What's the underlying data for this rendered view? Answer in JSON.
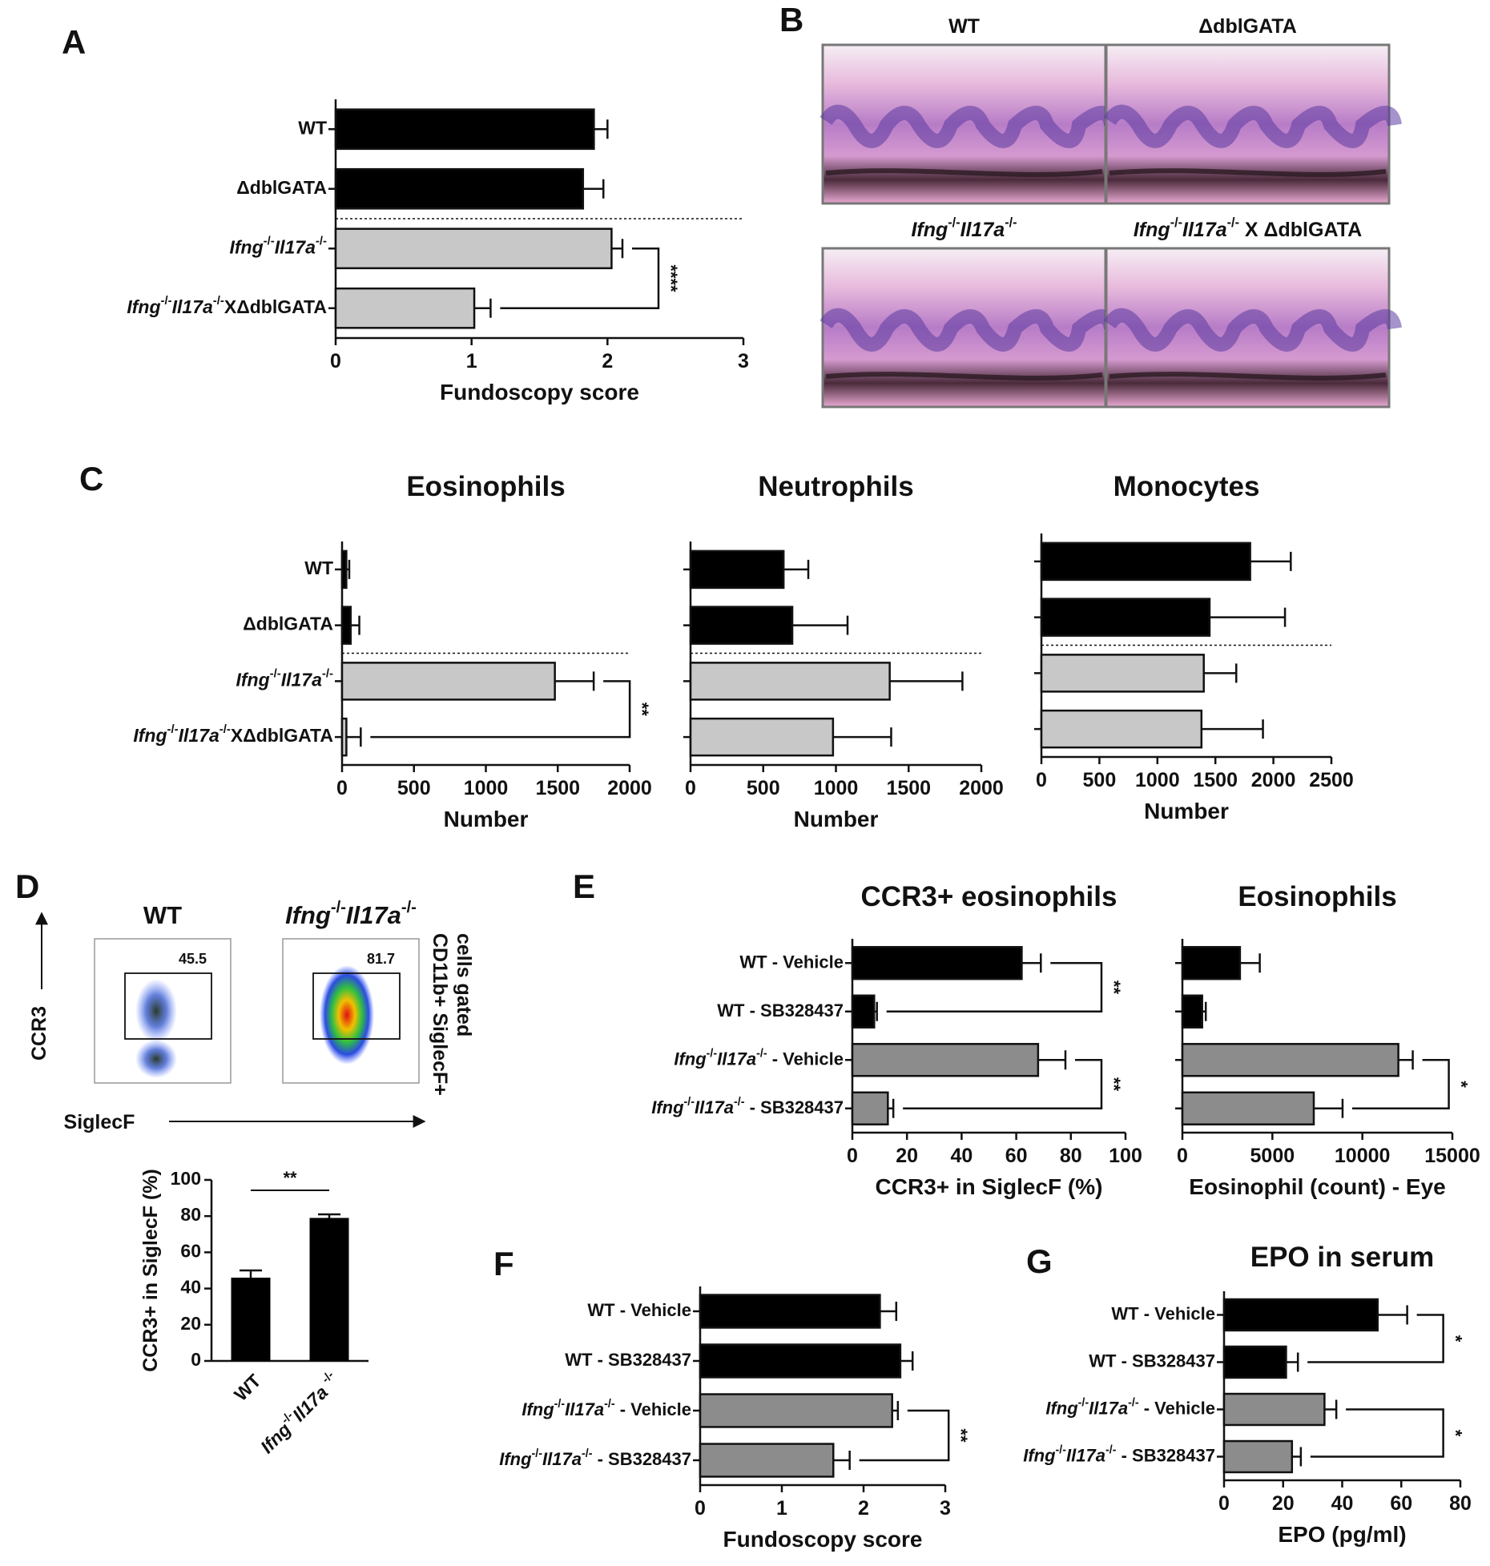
{
  "chart_data": [
    {
      "type": "hbar",
      "panel": "A",
      "categories": [
        "WT",
        "ΔdblGATA",
        "Ifng-/-Il17a-/-",
        "Ifng-/-Il17a-/-XΔdblGATA"
      ],
      "values": [
        1.9,
        1.82,
        2.03,
        1.02
      ],
      "errors": [
        0.1,
        0.15,
        0.08,
        0.12
      ],
      "colors": [
        "#000000",
        "#000000",
        "#c8c8c8",
        "#c8c8c8"
      ],
      "xlim": [
        0,
        3
      ],
      "xticks": [
        0,
        1,
        2,
        3
      ],
      "xlabel": "Fundoscopy score",
      "separator": true,
      "significance": [
        {
          "rows": [
            2,
            3
          ],
          "label": "****"
        }
      ]
    },
    {
      "type": "images",
      "panel": "B",
      "titles": [
        "WT",
        "ΔdblGATA",
        "Ifng-/-Il17a-/-",
        "Ifng-/-Il17a-/- X ΔdblGATA"
      ]
    },
    {
      "type": "hbar",
      "panel": "C",
      "title": "Eosinophils",
      "categories": [
        "WT",
        "ΔdblGATA",
        "Ifng-/-Il17a-/-",
        "Ifng-/-Il17a-/-XΔdblGATA"
      ],
      "values": [
        30,
        60,
        1480,
        30
      ],
      "errors": [
        20,
        60,
        270,
        100
      ],
      "colors": [
        "#000000",
        "#000000",
        "#c8c8c8",
        "#c8c8c8"
      ],
      "xlim": [
        0,
        2000
      ],
      "xticks": [
        0,
        500,
        1000,
        1500,
        2000
      ],
      "xlabel": "Number",
      "separator": true,
      "significance": [
        {
          "rows": [
            2,
            3
          ],
          "label": "**"
        }
      ]
    },
    {
      "type": "hbar",
      "title": "Neutrophils",
      "categories": [
        null,
        null,
        null,
        null
      ],
      "values": [
        640,
        700,
        1370,
        980
      ],
      "errors": [
        170,
        380,
        500,
        400
      ],
      "colors": [
        "#000000",
        "#000000",
        "#c8c8c8",
        "#c8c8c8"
      ],
      "xlim": [
        0,
        2000
      ],
      "xticks": [
        0,
        500,
        1000,
        1500,
        2000
      ],
      "xlabel": "Number",
      "separator": true
    },
    {
      "type": "hbar",
      "title": "Monocytes",
      "categories": [
        null,
        null,
        null,
        null
      ],
      "values": [
        1800,
        1450,
        1400,
        1380
      ],
      "errors": [
        350,
        650,
        280,
        530
      ],
      "colors": [
        "#000000",
        "#000000",
        "#c8c8c8",
        "#c8c8c8"
      ],
      "xlim": [
        0,
        2500
      ],
      "xticks": [
        0,
        500,
        1000,
        1500,
        2000,
        2500
      ],
      "xlabel": "Number",
      "separator": true
    },
    {
      "type": "flow",
      "panel": "D",
      "titles": [
        "WT",
        "Ifng-/-Il17a-/-"
      ],
      "gate_values": [
        45.5,
        81.7
      ],
      "xlabel": "SiglecF",
      "ylabel": "CCR3",
      "note": [
        "CD11b+ SiglecF+",
        "cells gated"
      ]
    },
    {
      "type": "vbar",
      "categories": [
        "WT",
        "Ifng-/-Il17a -/-"
      ],
      "values": [
        46,
        79
      ],
      "errors": [
        4,
        2
      ],
      "color": "#000000",
      "ylim": [
        0,
        100
      ],
      "yticks": [
        0,
        20,
        40,
        60,
        80,
        100
      ],
      "ylabel": "CCR3+ in SiglecF (%)",
      "significance": [
        {
          "rows": [
            0,
            1
          ],
          "label": "**"
        }
      ]
    },
    {
      "type": "hbar",
      "panel": "E",
      "title": "CCR3+ eosinophils",
      "categories": [
        "WT - Vehicle",
        "WT - SB328437",
        "Ifng-/-Il17a-/- - Vehicle",
        "Ifng-/-Il17a-/- - SB328437"
      ],
      "values": [
        62,
        8,
        68,
        13
      ],
      "errors": [
        7,
        1,
        10,
        2
      ],
      "colors": [
        "#000000",
        "#000000",
        "#8c8c8c",
        "#8c8c8c"
      ],
      "xlim": [
        0,
        100
      ],
      "xticks": [
        0,
        20,
        40,
        60,
        80,
        100
      ],
      "xlabel": "CCR3+ in SiglecF (%)",
      "significance": [
        {
          "rows": [
            0,
            1
          ],
          "label": "**"
        },
        {
          "rows": [
            2,
            3
          ],
          "label": "**"
        }
      ]
    },
    {
      "type": "hbar",
      "title": "Eosinophils",
      "categories": [
        null,
        null,
        null,
        null
      ],
      "values": [
        3200,
        1100,
        12000,
        7300
      ],
      "errors": [
        1100,
        200,
        800,
        1600
      ],
      "colors": [
        "#000000",
        "#000000",
        "#8c8c8c",
        "#8c8c8c"
      ],
      "xlim": [
        0,
        15000
      ],
      "xticks": [
        0,
        5000,
        10000,
        15000
      ],
      "xlabel": "Eosinophil (count) - Eye",
      "significance": [
        {
          "rows": [
            2,
            3
          ],
          "label": "*"
        }
      ]
    },
    {
      "type": "hbar",
      "panel": "F",
      "categories": [
        "WT - Vehicle",
        "WT - SB328437",
        "Ifng-/-Il17a-/- - Vehicle",
        "Ifng-/-Il17a-/- - SB328437"
      ],
      "values": [
        2.2,
        2.45,
        2.35,
        1.63
      ],
      "errors": [
        0.2,
        0.15,
        0.07,
        0.2
      ],
      "colors": [
        "#000000",
        "#000000",
        "#8c8c8c",
        "#8c8c8c"
      ],
      "xlim": [
        0,
        3
      ],
      "xticks": [
        0,
        1,
        2,
        3
      ],
      "xlabel": "Fundoscopy score",
      "significance": [
        {
          "rows": [
            2,
            3
          ],
          "label": "**"
        }
      ]
    },
    {
      "type": "hbar",
      "panel": "G",
      "title": "EPO in serum",
      "categories": [
        "WT - Vehicle",
        "WT - SB328437",
        "Ifng-/-Il17a-/- - Vehicle",
        "Ifng-/-Il17a-/- - SB328437"
      ],
      "values": [
        52,
        21,
        34,
        23
      ],
      "errors": [
        10,
        4,
        4,
        3
      ],
      "colors": [
        "#000000",
        "#000000",
        "#8c8c8c",
        "#8c8c8c"
      ],
      "xlim": [
        0,
        80
      ],
      "xticks": [
        0,
        20,
        40,
        60,
        80
      ],
      "xlabel": "EPO (pg/ml)",
      "significance": [
        {
          "rows": [
            0,
            1
          ],
          "label": "*"
        },
        {
          "rows": [
            2,
            3
          ],
          "label": "*"
        }
      ]
    }
  ]
}
